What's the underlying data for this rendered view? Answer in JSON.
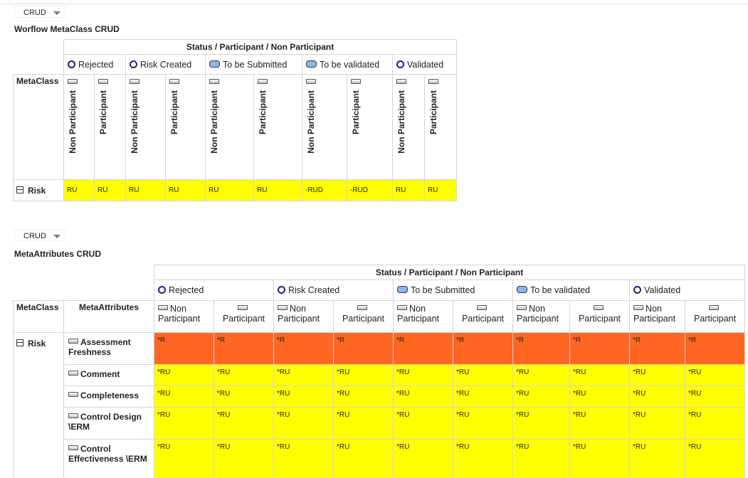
{
  "sections": [
    {
      "dropdown": "CRUD",
      "title": "Worflow MetaClass CRUD",
      "header": "Status / Participant / Non Participant",
      "metaclass_label": "MetaClass",
      "statuses": [
        {
          "label": "Rejected",
          "columns": [
            "Non Participant",
            "Participant"
          ]
        },
        {
          "label": "Risk Created",
          "columns": [
            "Non Participant",
            "Participant"
          ]
        },
        {
          "label": "To be Submitted",
          "columns": [
            "Non Participant",
            "Participant"
          ]
        },
        {
          "label": "To be validated",
          "columns": [
            "Non Participant",
            "Participant"
          ]
        },
        {
          "label": "Validated",
          "columns": [
            "Non Participant",
            "Participant"
          ]
        }
      ],
      "rows": [
        {
          "name": "Risk",
          "color": "#ffff00",
          "cells": [
            "RU",
            "RU",
            "RU",
            "RU",
            "RU",
            "RU",
            "-RUD",
            "-RUD",
            "RU",
            "RU"
          ]
        }
      ]
    },
    {
      "dropdown": "CRUD",
      "title": "MetaAttributes CRUD",
      "header": "Status / Participant / Non Participant",
      "metaclass_label": "MetaClass",
      "metaattributes_label": "MetaAttributes",
      "metaclass": "Risk",
      "statuses": [
        {
          "label": "Rejected",
          "columns": [
            "Non Participant",
            "Participant"
          ]
        },
        {
          "label": "Risk Created",
          "columns": [
            "Non Participant",
            "Participant"
          ]
        },
        {
          "label": "To be Submitted",
          "columns": [
            "Non Participant",
            "Participant"
          ]
        },
        {
          "label": "To be validated",
          "columns": [
            "Non Participant",
            "Participant"
          ]
        },
        {
          "label": "Validated",
          "columns": [
            "Non Participant",
            "Participant"
          ]
        }
      ],
      "rows": [
        {
          "name": "Assessment Freshness",
          "color": "#ff6622",
          "cells": [
            "*R",
            "*R",
            "*R",
            "*R",
            "*R",
            "*R",
            "*R",
            "*R",
            "*R",
            "*R"
          ]
        },
        {
          "name": "Comment",
          "color": "#ffff00",
          "cells": [
            "*RU",
            "*RU",
            "*RU",
            "*RU",
            "*RU",
            "*RU",
            "*RU",
            "*RU",
            "*RU",
            "*RU"
          ]
        },
        {
          "name": "Completeness",
          "color": "#ffff00",
          "cells": [
            "*RU",
            "*RU",
            "*RU",
            "*RU",
            "*RU",
            "*RU",
            "*RU",
            "*RU",
            "*RU",
            "*RU"
          ]
        },
        {
          "name": "Control Design \\ERM",
          "color": "#ffff00",
          "cells": [
            "*RU",
            "*RU",
            "*RU",
            "*RU",
            "*RU",
            "*RU",
            "*RU",
            "*RU",
            "*RU",
            "*RU"
          ]
        },
        {
          "name": "Control Effectiveness \\ERM",
          "color": "#ffff00",
          "cells": [
            "*RU",
            "*RU",
            "*RU",
            "*RU",
            "*RU",
            "*RU",
            "*RU",
            "*RU",
            "*RU",
            "*RU"
          ]
        }
      ]
    }
  ]
}
